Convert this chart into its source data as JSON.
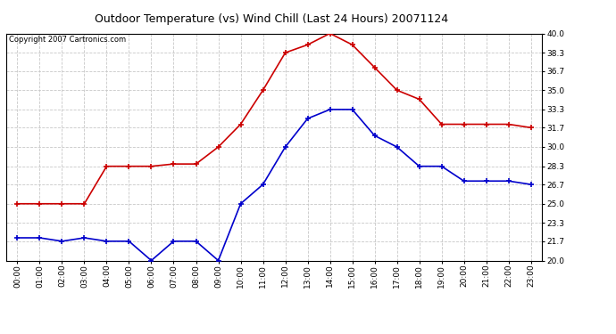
{
  "title": "Outdoor Temperature (vs) Wind Chill (Last 24 Hours) 20071124",
  "copyright": "Copyright 2007 Cartronics.com",
  "hours": [
    0,
    1,
    2,
    3,
    4,
    5,
    6,
    7,
    8,
    9,
    10,
    11,
    12,
    13,
    14,
    15,
    16,
    17,
    18,
    19,
    20,
    21,
    22,
    23
  ],
  "temp_red": [
    25.0,
    25.0,
    25.0,
    25.0,
    28.3,
    28.3,
    28.3,
    28.5,
    28.5,
    30.0,
    32.0,
    35.0,
    38.3,
    39.0,
    40.0,
    39.0,
    37.0,
    35.0,
    34.2,
    32.0,
    32.0,
    32.0,
    32.0,
    31.7
  ],
  "windchill_blue": [
    22.0,
    22.0,
    21.7,
    22.0,
    21.7,
    21.7,
    20.0,
    21.7,
    21.7,
    20.0,
    25.0,
    26.7,
    30.0,
    32.5,
    33.3,
    33.3,
    31.0,
    30.0,
    28.3,
    28.3,
    27.0,
    27.0,
    27.0,
    26.7
  ],
  "temp_color": "#cc0000",
  "windchill_color": "#0000cc",
  "bg_color": "#ffffff",
  "plot_bg_color": "#ffffff",
  "grid_color": "#c8c8c8",
  "ylim": [
    20.0,
    40.0
  ],
  "yticks": [
    20.0,
    21.7,
    23.3,
    25.0,
    26.7,
    28.3,
    30.0,
    31.7,
    33.3,
    35.0,
    36.7,
    38.3,
    40.0
  ],
  "title_fontsize": 9,
  "copyright_fontsize": 6,
  "tick_fontsize": 6.5,
  "line_width": 1.2,
  "marker_size": 4
}
